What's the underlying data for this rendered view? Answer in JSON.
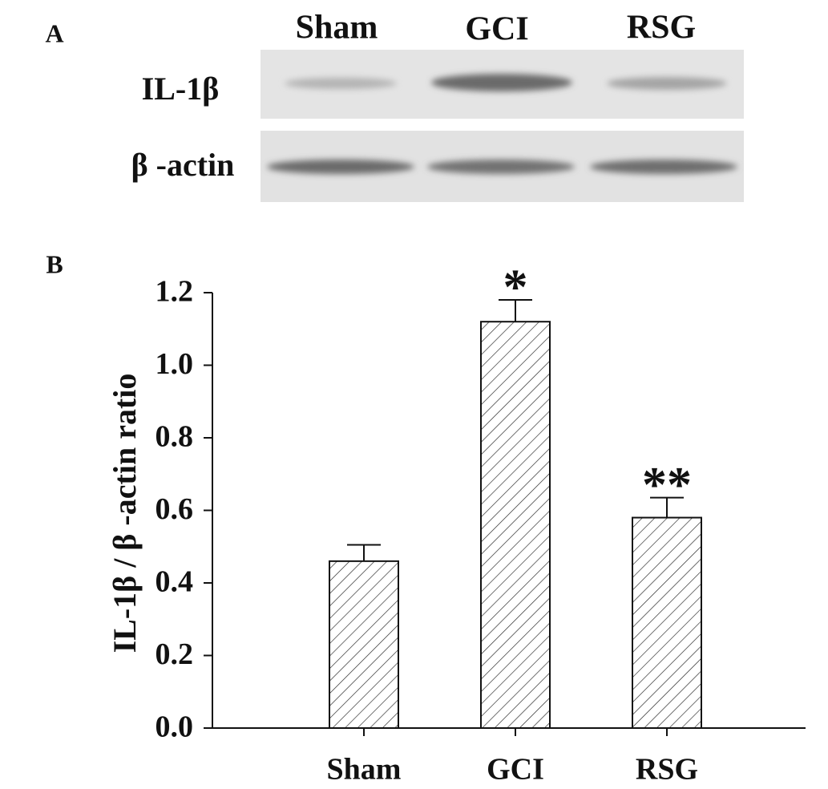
{
  "panel_labels": [
    "A",
    "B"
  ],
  "blot": {
    "columns": [
      "Sham",
      "GCI",
      "RSG"
    ],
    "rows": [
      "IL-1β",
      "β -actin"
    ]
  },
  "chart_data": {
    "type": "bar",
    "y_label": "IL-1β / β -actin ratio",
    "categories": [
      "Sham",
      "GCI",
      "RSG"
    ],
    "values": [
      0.46,
      1.12,
      0.58
    ],
    "errors": [
      0.045,
      0.06,
      0.055
    ],
    "significance": [
      null,
      "*",
      "**"
    ],
    "color": "#ffffff",
    "ylim": [
      0,
      1.2
    ],
    "yticks": [
      {
        "value": 0,
        "label": "0.0"
      },
      0.2,
      0.4,
      0.6,
      0.8,
      {
        "value": 1,
        "label": "1.0"
      },
      1.2
    ]
  }
}
